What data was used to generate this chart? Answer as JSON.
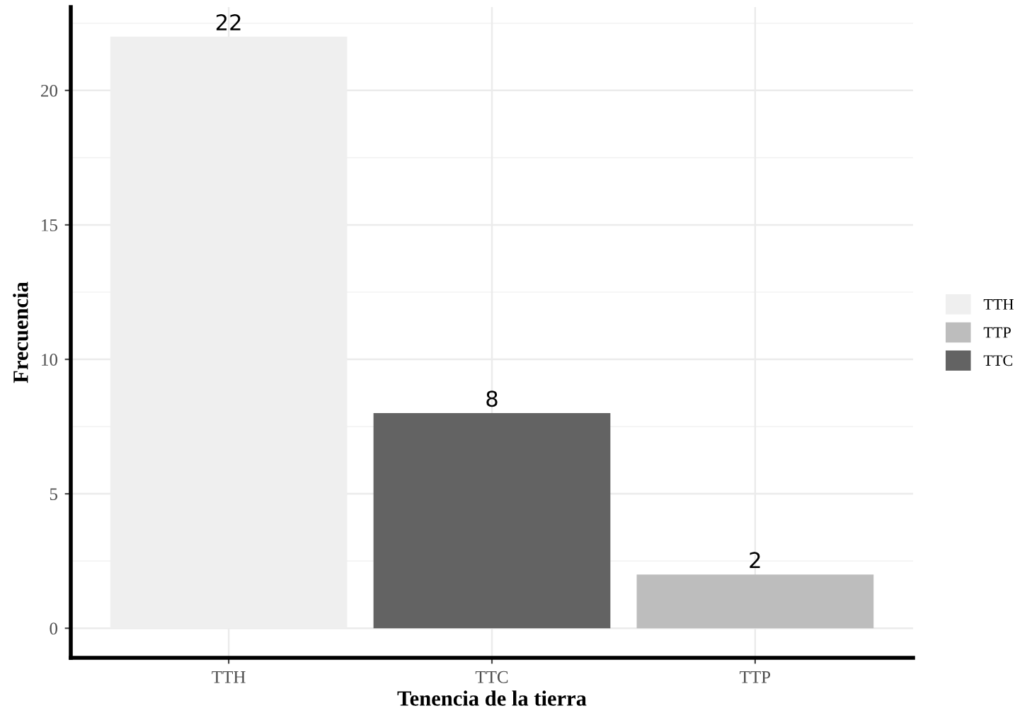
{
  "chart_data": {
    "type": "bar",
    "xlabel": "Tenencia de la tierra",
    "ylabel": "Frecuencia",
    "categories": [
      "TTH",
      "TTC",
      "TTP"
    ],
    "series": [
      {
        "name": "TTH",
        "color": "#efefef",
        "values": [
          22,
          null,
          null
        ]
      },
      {
        "name": "TTP",
        "color": "#bdbdbd",
        "values": [
          null,
          null,
          2
        ]
      },
      {
        "name": "TTC",
        "color": "#636363",
        "values": [
          null,
          8,
          null
        ]
      }
    ],
    "ylim": [
      -1.1,
      23.1
    ],
    "yticks": [
      0,
      5,
      10,
      15,
      20
    ],
    "grid": true,
    "legend": "right",
    "data_labels": true
  }
}
